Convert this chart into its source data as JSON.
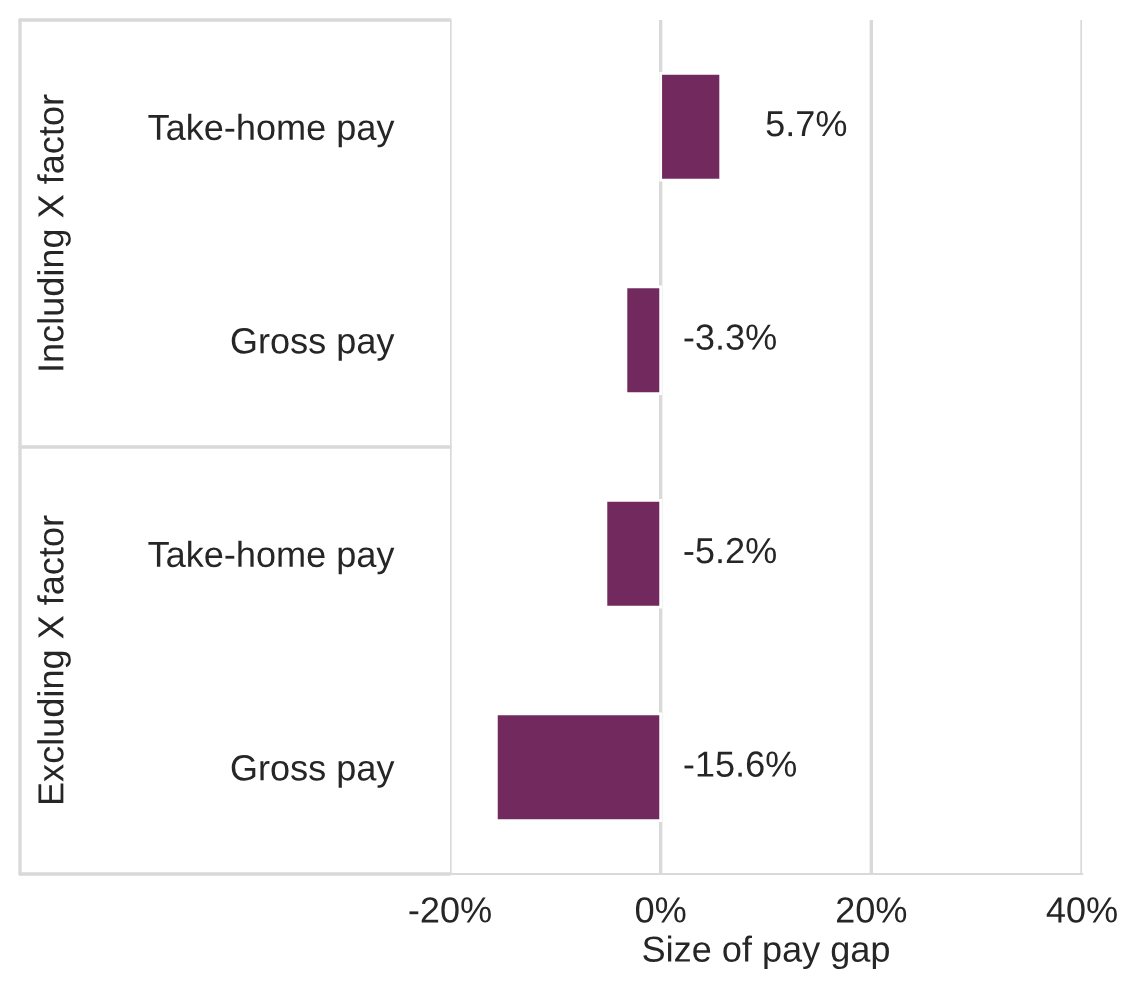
{
  "chart_data": {
    "type": "bar",
    "orientation": "horizontal",
    "categories": [
      "Take-home pay",
      "Gross pay",
      "Take-home pay",
      "Gross pay"
    ],
    "values": [
      5.7,
      -3.3,
      -5.2,
      -15.6
    ],
    "color": "#722a5e",
    "value_labels": [
      "5.7%",
      "-3.3%",
      "-5.2%",
      "-15.6%"
    ],
    "xlim": [
      -20,
      40
    ],
    "xticks": [
      {
        "value": -20,
        "label": "-20%"
      },
      {
        "value": 0,
        "label": "0%"
      },
      {
        "value": 20,
        "label": "20%"
      },
      {
        "value": 40,
        "label": "40%"
      }
    ],
    "xlabel": "Size of pay gap",
    "grid": "x",
    "legend": false,
    "annotations": [
      "Including X factor",
      "Excluding X factor"
    ]
  }
}
